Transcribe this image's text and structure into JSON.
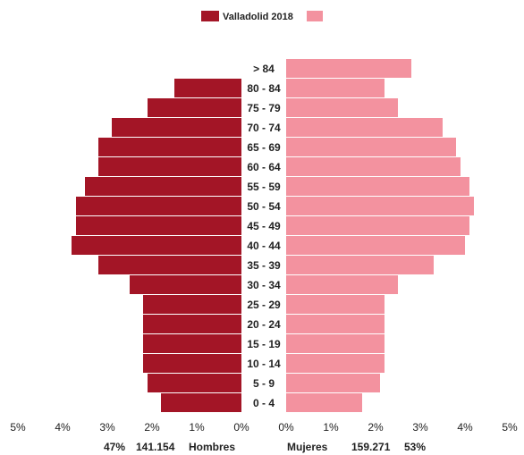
{
  "chart_data": {
    "type": "bar",
    "title": "",
    "categories": [
      "0 - 4",
      "5 - 9",
      "10 - 14",
      "15 - 19",
      "20 - 24",
      "25 - 29",
      "30 - 34",
      "35 - 39",
      "40 - 44",
      "45 - 49",
      "50 - 54",
      "55 - 59",
      "60 - 64",
      "65 - 69",
      "70 - 74",
      "75 - 79",
      "80 - 84",
      "> 84"
    ],
    "series": [
      {
        "name": "Valladolid 2018",
        "side": "left",
        "color": "#a31526",
        "values": [
          1.8,
          2.1,
          2.2,
          2.2,
          2.2,
          2.2,
          2.5,
          3.2,
          3.8,
          3.7,
          3.7,
          3.5,
          3.2,
          3.2,
          2.9,
          2.1,
          1.5,
          0.0
        ]
      },
      {
        "name": "",
        "side": "right",
        "color": "#f3929f",
        "values": [
          1.7,
          2.1,
          2.2,
          2.2,
          2.2,
          2.2,
          2.5,
          3.3,
          4.0,
          4.1,
          4.2,
          4.1,
          3.9,
          3.8,
          3.5,
          2.5,
          2.2,
          2.8
        ]
      }
    ],
    "xlim": [
      -5,
      5
    ],
    "x_ticks": [
      "5%",
      "4%",
      "3%",
      "2%",
      "1%",
      "0%",
      "0%",
      "1%",
      "2%",
      "3%",
      "4%",
      "5%"
    ],
    "legend": {
      "position": "top-center",
      "label": "Valladolid 2018"
    },
    "grid": false,
    "footer": {
      "men_percent": "47%",
      "men_count": "141.154",
      "men_label": "Hombres",
      "women_label": "Mujeres",
      "women_count": "159.271",
      "women_percent": "53%"
    }
  }
}
